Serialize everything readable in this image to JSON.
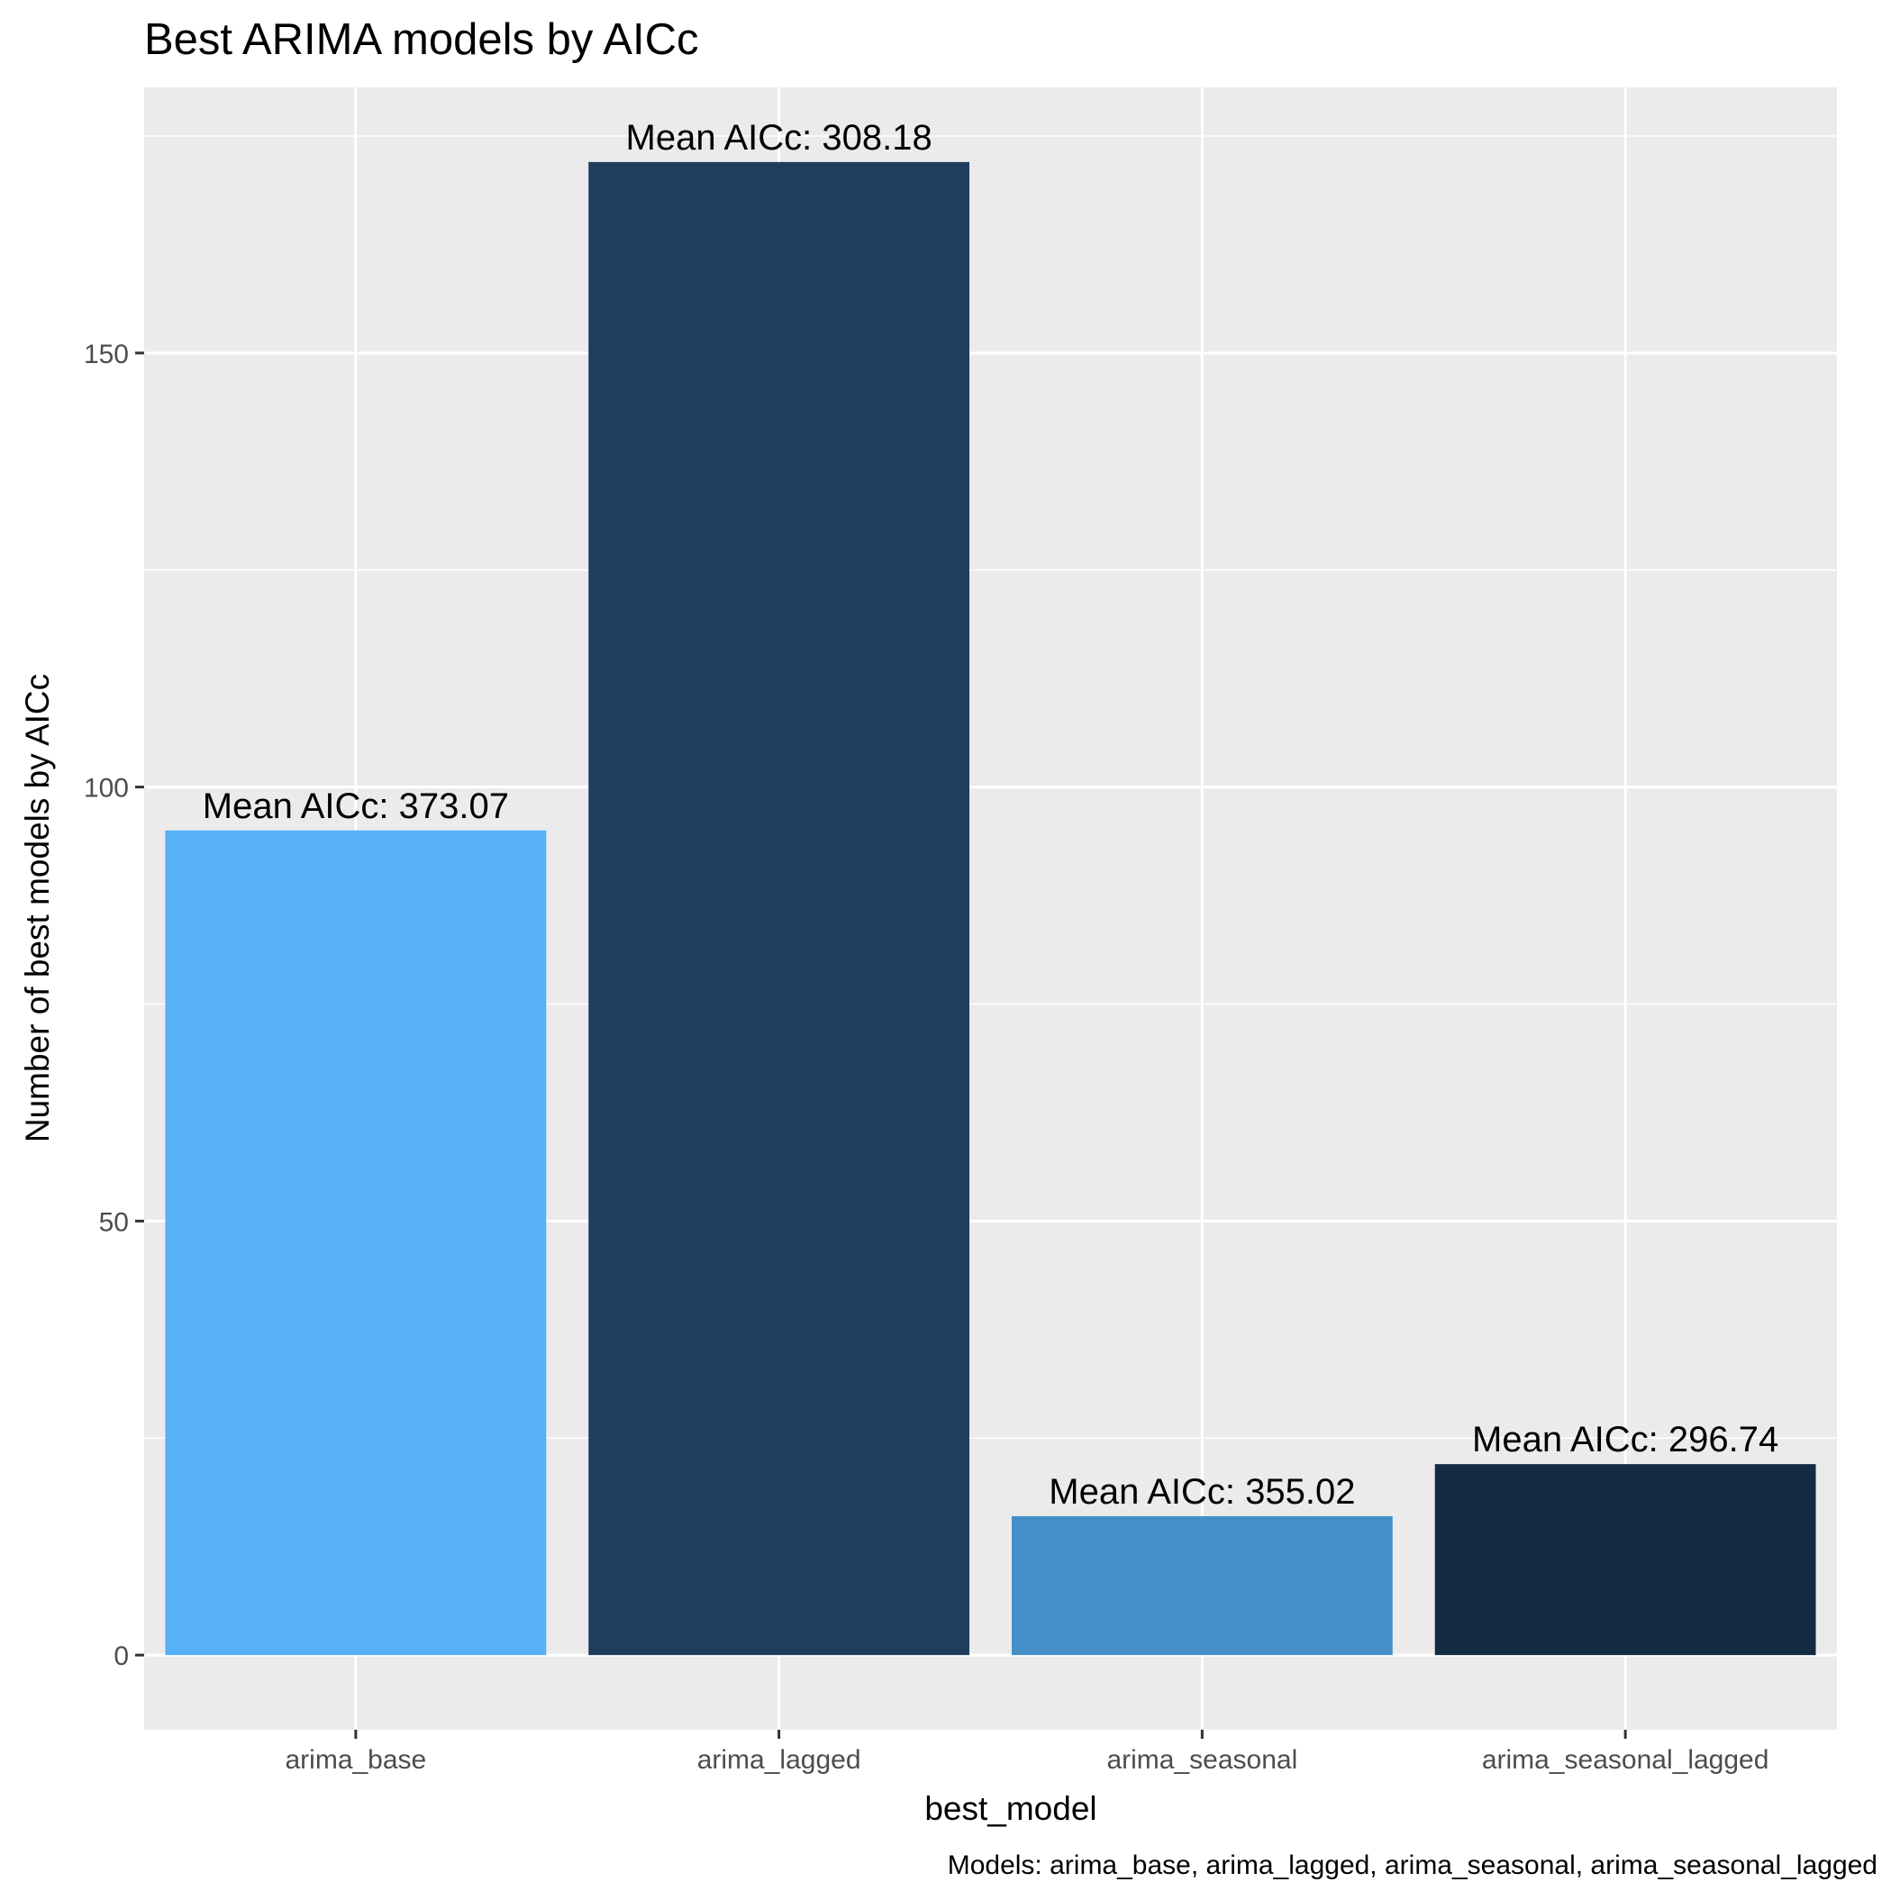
{
  "chart_data": {
    "type": "bar",
    "title": "Best ARIMA models by AICc",
    "xlabel": "best_model",
    "ylabel": "Number of best models by AICc",
    "caption": "Models: arima_base, arima_lagged, arima_seasonal, arima_seasonal_lagged",
    "categories": [
      "arima_base",
      "arima_lagged",
      "arima_seasonal",
      "arima_seasonal_lagged"
    ],
    "values": [
      95,
      172,
      16,
      22
    ],
    "bar_labels": [
      "Mean AICc:  373.07",
      "Mean AICc:  308.18",
      "Mean AICc:  355.02",
      "Mean AICc:  296.74"
    ],
    "colors": [
      "#56b1f7",
      "#1f3d5c",
      "#448fc8",
      "#132b43"
    ],
    "yticks": [
      0,
      50,
      100,
      150
    ],
    "ytick_labels": [
      "0",
      "50",
      "100",
      "150"
    ],
    "ylim": [
      -8.6,
      180.6
    ],
    "grid": true,
    "legend": "none",
    "panel_background": "#ebebeb",
    "grid_color": "#ffffff"
  }
}
